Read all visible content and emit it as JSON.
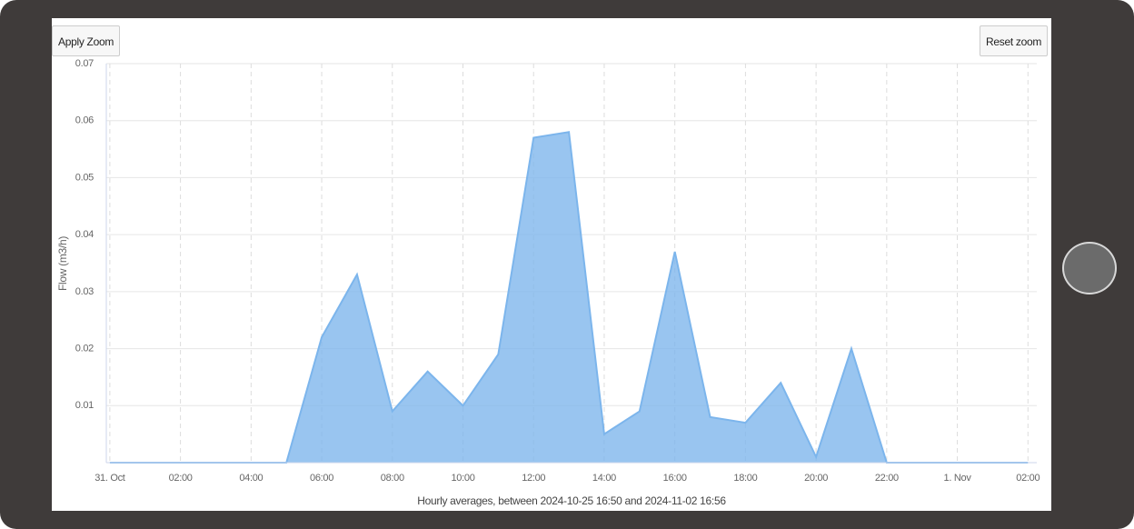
{
  "buttons": {
    "apply": "Apply Zoom",
    "reset": "Reset zoom"
  },
  "chart_data": {
    "type": "area",
    "y_label": "Flow (m3/h)",
    "x_label": "Hourly averages, between 2024-10-25 16:50 and 2024-11-02 16:56",
    "x": [
      0,
      1,
      2,
      3,
      4,
      5,
      6,
      7,
      8,
      9,
      10,
      11,
      12,
      13,
      14,
      15,
      16,
      17,
      18,
      19,
      20,
      21,
      22,
      23,
      24,
      25,
      26
    ],
    "series": [
      {
        "name": "Flow",
        "color": "#7cb5ec",
        "values": [
          0,
          0,
          0,
          0,
          0,
          0,
          0.022,
          0.033,
          0.009,
          0.016,
          0.01,
          0.019,
          0.057,
          0.058,
          0.005,
          0.009,
          0.037,
          0.008,
          0.007,
          0.014,
          0.001,
          0.02,
          0,
          0,
          0,
          0,
          0
        ]
      }
    ],
    "xlim": [
      -0.1,
      26.25
    ],
    "xticks": [
      {
        "value": 0,
        "label": "31. Oct"
      },
      {
        "value": 2,
        "label": "02:00"
      },
      {
        "value": 4,
        "label": "04:00"
      },
      {
        "value": 6,
        "label": "06:00"
      },
      {
        "value": 8,
        "label": "08:00"
      },
      {
        "value": 10,
        "label": "10:00"
      },
      {
        "value": 12,
        "label": "12:00"
      },
      {
        "value": 14,
        "label": "14:00"
      },
      {
        "value": 16,
        "label": "16:00"
      },
      {
        "value": 18,
        "label": "18:00"
      },
      {
        "value": 20,
        "label": "20:00"
      },
      {
        "value": 22,
        "label": "22:00"
      },
      {
        "value": 24,
        "label": "1. Nov"
      },
      {
        "value": 26,
        "label": "02:00"
      }
    ],
    "ylim": [
      0,
      0.07
    ],
    "yticks": [
      0.01,
      0.02,
      0.03,
      0.04,
      0.05,
      0.06,
      0.07
    ],
    "grid": true
  }
}
